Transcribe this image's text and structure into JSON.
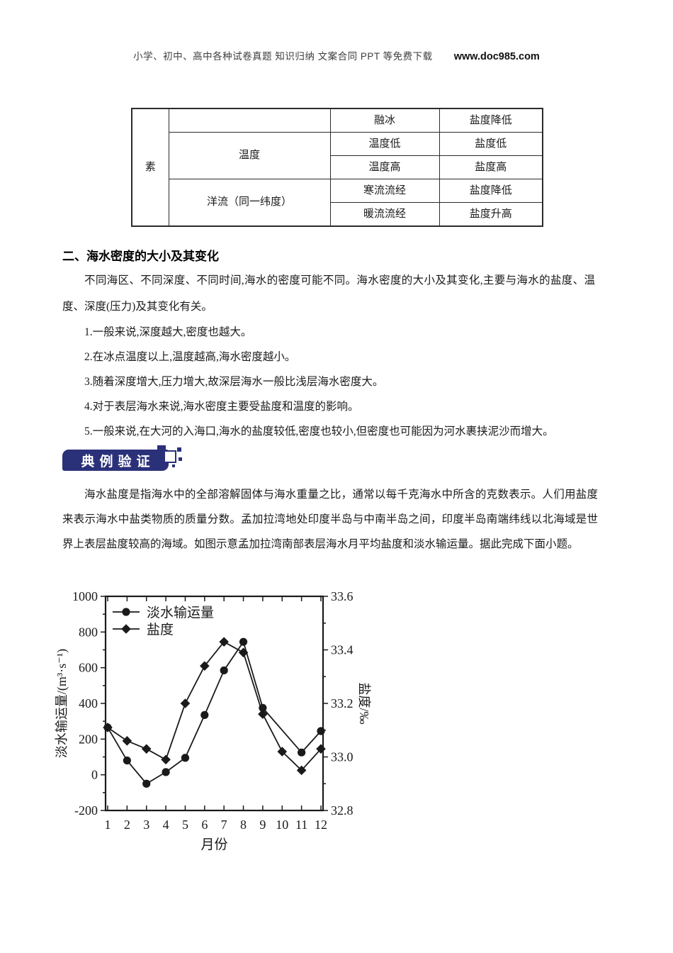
{
  "accent_color": "#2b3179",
  "ink_color": "#1a1a1a",
  "header": {
    "left_text": "小学、初中、高中各种试卷真题 知识归纳 文案合同 PPT 等免费下载",
    "site": "www.doc985.com"
  },
  "table": {
    "factor_label": "素",
    "groups": [
      {
        "label": "",
        "rows": [
          [
            "融冰",
            "盐度降低"
          ]
        ]
      },
      {
        "label": "温度",
        "rows": [
          [
            "温度低",
            "盐度低"
          ],
          [
            "温度高",
            "盐度高"
          ]
        ]
      },
      {
        "label": "洋流（同一纬度）",
        "rows": [
          [
            "寒流流经",
            "盐度降低"
          ],
          [
            "暖流流经",
            "盐度升高"
          ]
        ]
      }
    ]
  },
  "section": {
    "heading": "二、海水密度的大小及其变化",
    "intro": "不同海区、不同深度、不同时间,海水的密度可能不同。海水密度的大小及其变化,主要与海水的盐度、温度、深度(压力)及其变化有关。",
    "items": [
      "1.一般来说,深度越大,密度也越大。",
      "2.在冰点温度以上,温度越高,海水密度越小。",
      "3.随着深度增大,压力增大,故深层海水一般比浅层海水密度大。",
      "4.对于表层海水来说,海水密度主要受盐度和温度的影响。",
      "5.一般来说,在大河的入海口,海水的盐度较低,密度也较小,但密度也可能因为河水裹挟泥沙而增大。"
    ]
  },
  "banner": {
    "label": "典例验证"
  },
  "question": {
    "text": "海水盐度是指海水中的全部溶解固体与海水重量之比，通常以每千克海水中所含的克数表示。人们用盐度来表示海水中盐类物质的质量分数。孟加拉湾地处印度半岛与中南半岛之间，印度半岛南端纬线以北海域是世界上表层盐度较高的海域。如图示意孟加拉湾南部表层海水月平均盐度和淡水输运量。据此完成下面小题。"
  },
  "chart_data": {
    "type": "line",
    "x": [
      1,
      2,
      3,
      4,
      5,
      6,
      7,
      8,
      9,
      10,
      11,
      12
    ],
    "x_axis": {
      "label": "月份",
      "tick_labels": [
        "1",
        "2",
        "3",
        "4",
        "5",
        "6",
        "7",
        "8",
        "9",
        "10",
        "11",
        "12"
      ]
    },
    "left_axis": {
      "label": "淡水输运量/(m³·s⁻¹)",
      "min": -200,
      "max": 1000,
      "major_ticks": [
        1000,
        800,
        600,
        400,
        200,
        0,
        -200
      ],
      "major_tick_labels": [
        "1000",
        "800",
        "600",
        "400",
        "200",
        "0",
        "-200"
      ],
      "minor_ticks": [
        900,
        700,
        500,
        300,
        100,
        -100
      ]
    },
    "right_axis": {
      "label": "盐度/‰",
      "min": 32.8,
      "max": 33.6,
      "major_ticks": [
        33.6,
        33.4,
        33.2,
        33.0,
        32.8
      ],
      "major_tick_labels": [
        "33.6",
        "33.4",
        "33.2",
        "33.0",
        "32.8"
      ],
      "minor_ticks": [
        33.5,
        33.3,
        33.1,
        32.9
      ]
    },
    "legend_position": "top-left-inside",
    "grid": false,
    "series": [
      {
        "name": "盐度",
        "axis": "right",
        "marker": "diamond",
        "values": [
          33.11,
          33.06,
          33.03,
          32.99,
          33.2,
          33.34,
          33.43,
          33.39,
          33.16,
          33.02,
          32.95,
          33.03
        ]
      },
      {
        "name": "淡水输运量",
        "axis": "left",
        "marker": "circle",
        "values": [
          265,
          80,
          -50,
          15,
          95,
          335,
          585,
          745,
          375,
          null,
          125,
          245
        ]
      }
    ],
    "legend_order": [
      "淡水输运量",
      "盐度"
    ]
  }
}
